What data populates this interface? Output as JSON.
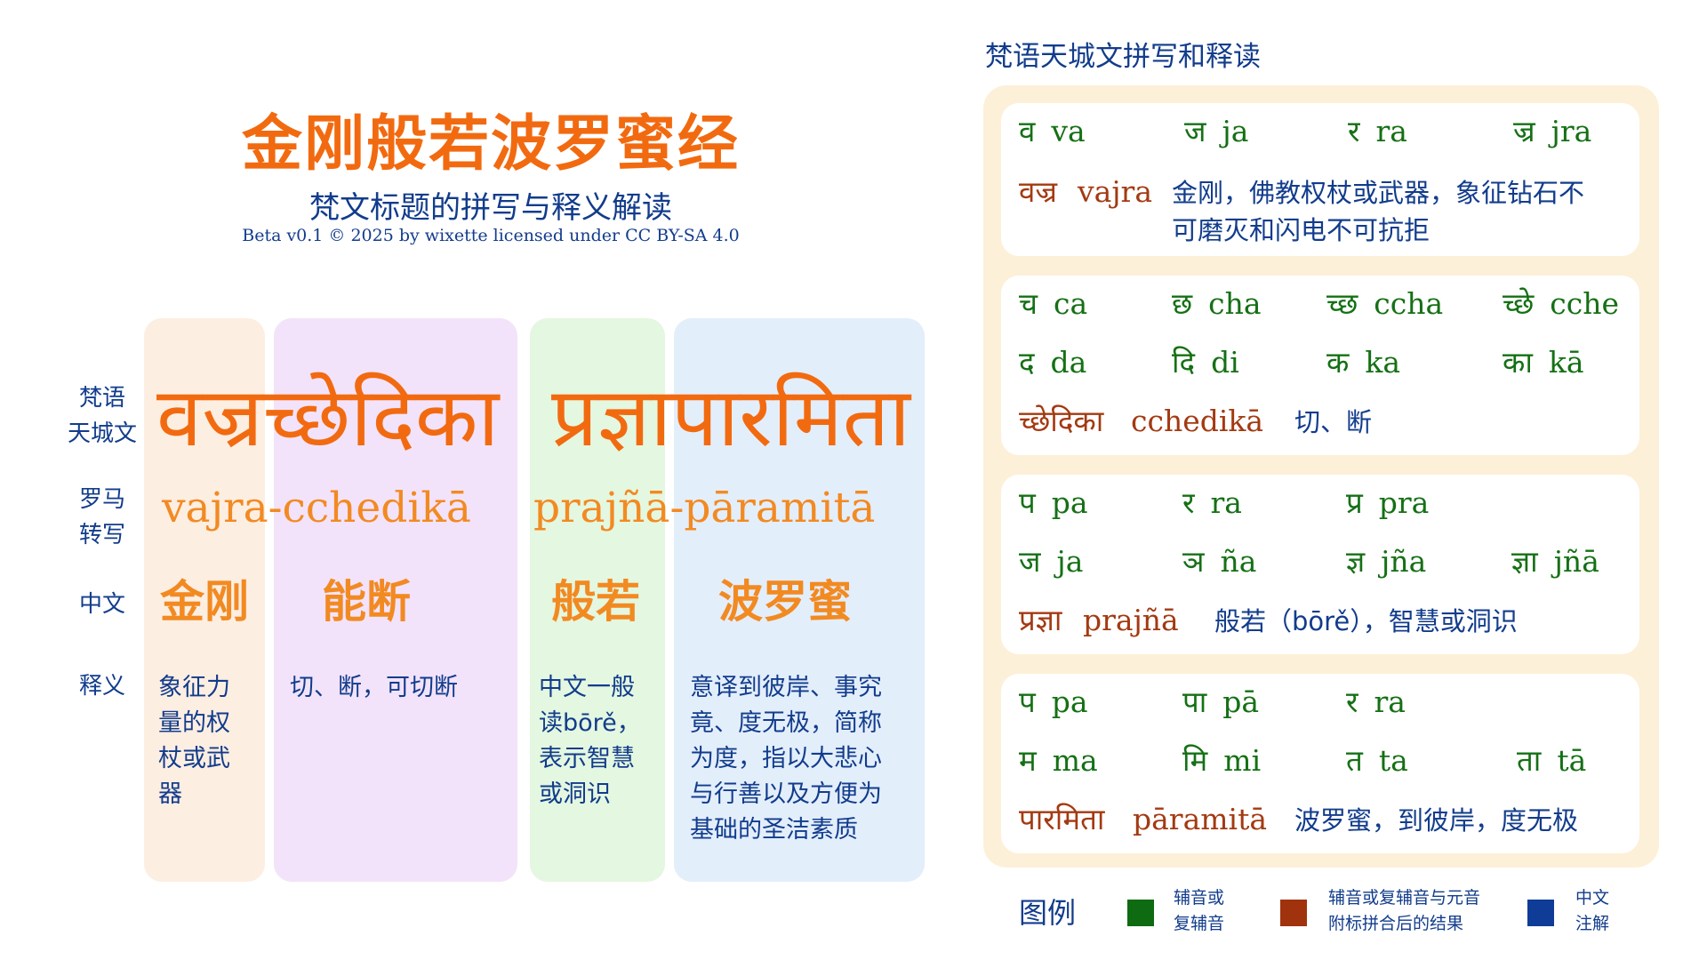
{
  "header": {
    "title": "金刚般若波罗蜜经",
    "subtitle": "梵文标题的拼写与释义解读",
    "credit": "Beta v0.1 © 2025 by wixette  licensed under CC BY-SA 4.0"
  },
  "row_labels": {
    "sanskrit": [
      "梵语",
      "天城文"
    ],
    "roman": [
      "罗马",
      "转写"
    ],
    "chinese": "中文",
    "meaning": "释义"
  },
  "title_words": {
    "deva_1": "वज्रच्छेदिका",
    "deva_2": "प्रज्ञापारमिता",
    "roman_1": "vajra-cchedikā",
    "roman_2": "prajñā-pāramitā"
  },
  "columns": [
    {
      "chinese": "金刚",
      "meaning": [
        "象征力",
        "量的权",
        "杖或武",
        "器"
      ],
      "bg": "#fdeee2"
    },
    {
      "chinese": "能断",
      "meaning": [
        "切、断，可切断"
      ],
      "bg": "#f2e3fa"
    },
    {
      "chinese": "般若",
      "meaning": [
        "中文一般",
        "读bōrě，",
        "表示智慧",
        "或洞识"
      ],
      "bg": "#e4f7e0"
    },
    {
      "chinese": "波罗蜜",
      "meaning": [
        "意译到彼岸、事究",
        "竟、度无极，简称",
        "为度，指以大悲心",
        "与行善以及方便为",
        "基础的圣洁素质"
      ],
      "bg": "#e3eefb"
    }
  ],
  "panel": {
    "title": "梵语天城文拼写和释读",
    "cards": [
      {
        "syllables": [
          [
            {
              "d": "व",
              "r": "va"
            },
            {
              "d": "ज",
              "r": "ja"
            },
            {
              "d": "र",
              "r": "ra"
            },
            {
              "d": "ज्र",
              "r": "jra"
            }
          ]
        ],
        "result": {
          "d": "वज्र",
          "r": "vajra",
          "gloss": [
            "金刚，佛教权杖或武器，象征钻石不",
            "可磨灭和闪电不可抗拒"
          ]
        }
      },
      {
        "syllables": [
          [
            {
              "d": "च",
              "r": "ca"
            },
            {
              "d": "छ",
              "r": "cha"
            },
            {
              "d": "च्छ",
              "r": "ccha"
            },
            {
              "d": "च्छे",
              "r": "cche"
            }
          ],
          [
            {
              "d": "द",
              "r": "da"
            },
            {
              "d": "दि",
              "r": "di"
            },
            {
              "d": "क",
              "r": "ka"
            },
            {
              "d": "का",
              "r": "kā"
            }
          ]
        ],
        "result": {
          "d": "च्छेदिका",
          "r": "cchedikā",
          "gloss": [
            "切、断"
          ]
        }
      },
      {
        "syllables": [
          [
            {
              "d": "प",
              "r": "pa"
            },
            {
              "d": "र",
              "r": "ra"
            },
            {
              "d": "प्र",
              "r": "pra"
            }
          ],
          [
            {
              "d": "ज",
              "r": "ja"
            },
            {
              "d": "ञ",
              "r": "ña"
            },
            {
              "d": "ज्ञ",
              "r": "jña"
            },
            {
              "d": "ज्ञा",
              "r": "jñā"
            }
          ]
        ],
        "result": {
          "d": "प्रज्ञा",
          "r": "prajñā",
          "gloss": [
            "般若（bōrě），智慧或洞识"
          ]
        }
      },
      {
        "syllables": [
          [
            {
              "d": "प",
              "r": "pa"
            },
            {
              "d": "पा",
              "r": "pā"
            },
            {
              "d": "र",
              "r": "ra"
            }
          ],
          [
            {
              "d": "म",
              "r": "ma"
            },
            {
              "d": "मि",
              "r": "mi"
            },
            {
              "d": "त",
              "r": "ta"
            },
            {
              "d": "ता",
              "r": "tā"
            }
          ]
        ],
        "result": {
          "d": "पारमिता",
          "r": "pāramitā",
          "gloss": [
            "波罗蜜，到彼岸，度无极"
          ]
        }
      }
    ]
  },
  "legend": {
    "title": "图例",
    "items": [
      {
        "color": "#0e6b12",
        "text": [
          "辅音或",
          "复辅音"
        ]
      },
      {
        "color": "#a0320e",
        "text": [
          "辅音或复辅音与元音",
          "附标拼合后的结果"
        ]
      },
      {
        "color": "#0f3c96",
        "text": [
          "中文",
          "注解"
        ]
      }
    ]
  }
}
